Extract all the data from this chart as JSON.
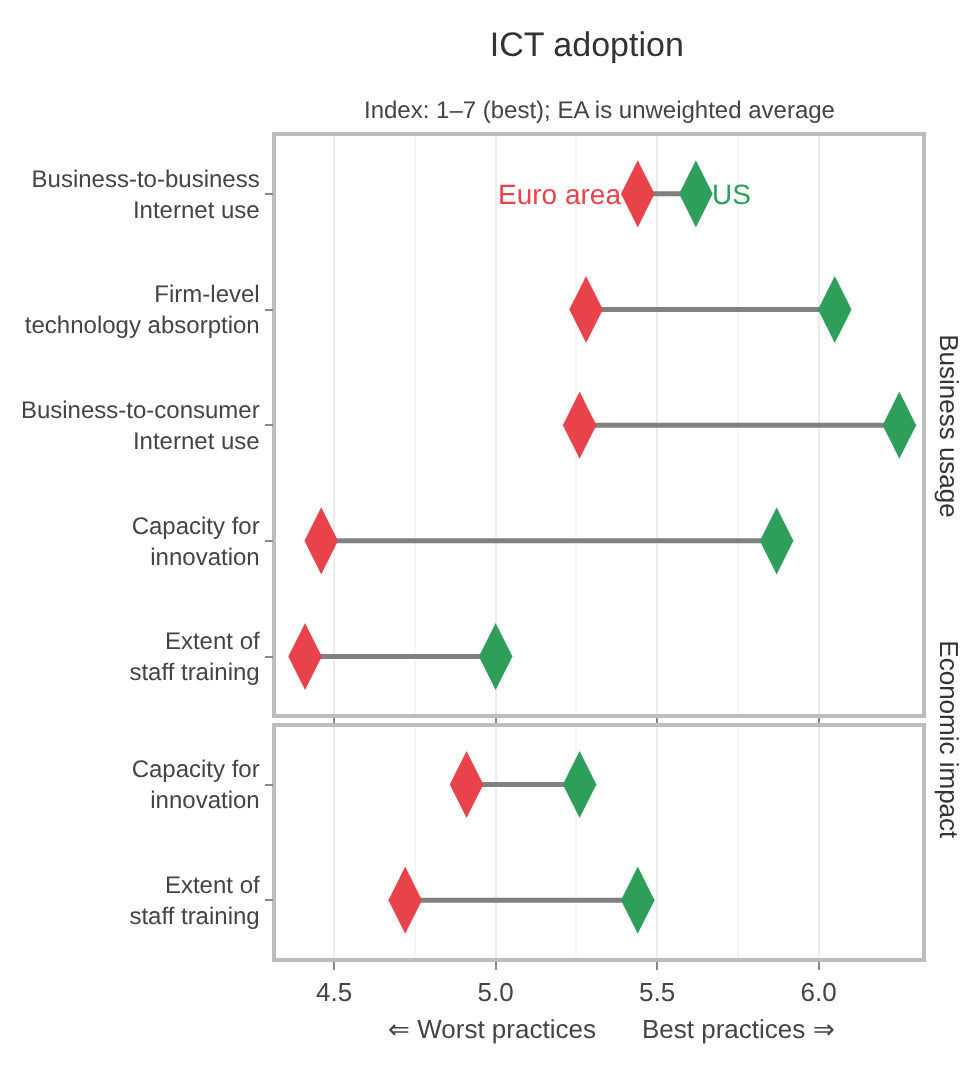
{
  "chart_data": [
    {
      "type": "scatter",
      "orientation": "horizontal",
      "title": "ICT adoption",
      "subtitle": "Index: 1–7 (best); EA is unweighted average",
      "y2label": "Business usage",
      "categories": [
        "Business-to-business\nInternet use",
        "Firm-level\ntechnology absorption",
        "Business-to-consumer\nInternet use",
        "Capacity for\ninnovation",
        "Extent of\nstaff training"
      ],
      "series": [
        {
          "name": "Euro area",
          "color": "#e8434b",
          "values": [
            5.44,
            5.28,
            5.26,
            4.46,
            4.41
          ]
        },
        {
          "name": "US",
          "color": "#2e9e5b",
          "values": [
            5.62,
            6.05,
            6.25,
            5.87,
            5.0
          ]
        }
      ],
      "xlim": [
        4.32,
        6.32
      ],
      "grid": "x",
      "tick_labels": "y",
      "marker": "diamond"
    },
    {
      "type": "scatter",
      "orientation": "horizontal",
      "y2label": "Economic impact",
      "categories": [
        "Capacity for\ninnovation",
        "Extent of\nstaff training"
      ],
      "series": [
        {
          "color": "#e8434b",
          "values": [
            4.91,
            4.72
          ]
        },
        {
          "color": "#2e9e5b",
          "values": [
            5.26,
            5.44
          ]
        }
      ],
      "xlim": [
        4.32,
        6.32
      ],
      "xticks": [
        4.5,
        {
          "value": 5,
          "label": "5.0"
        },
        5.5,
        {
          "value": 6,
          "label": "6.0"
        }
      ],
      "grid": "x",
      "marker": "diamond",
      "annotations": [
        "⇐ Worst practices",
        "Best practices ⇒"
      ]
    }
  ]
}
